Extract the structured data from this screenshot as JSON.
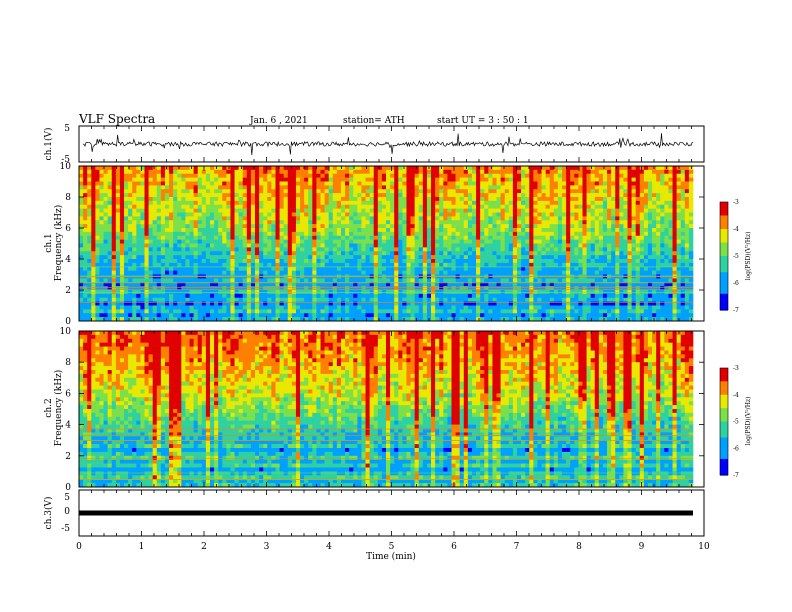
{
  "header": {
    "title": "VLF Spectra",
    "date": "Jan. 6 , 2021",
    "station": "station= ATH",
    "start": "start UT = 3 : 50 : 1"
  },
  "chart_data": [
    {
      "type": "line",
      "ylabel": "ch.1(V)",
      "ylim": [
        -5,
        5
      ],
      "y_ticks": [
        "5",
        "-5"
      ],
      "xlim": [
        0,
        10
      ],
      "description_level": 0.0
    },
    {
      "type": "heatmap",
      "ylabel_line1": "ch.1",
      "ylabel_line2": "Frequency (kHz)",
      "xlim": [
        0,
        10
      ],
      "ylim": [
        0,
        10
      ],
      "y_ticks": [
        "0",
        "2",
        "4",
        "6",
        "8",
        "10"
      ],
      "colorbar": {
        "label": "log(PSD)(V²/Hz)",
        "range": [
          -7,
          -3
        ],
        "ticks": [
          "-3",
          "-4",
          "-5",
          "-6",
          "-7"
        ]
      }
    },
    {
      "type": "heatmap",
      "ylabel_line1": "ch.2",
      "ylabel_line2": "Frequency (kHz)",
      "xlim": [
        0,
        10
      ],
      "ylim": [
        0,
        10
      ],
      "y_ticks": [
        "0",
        "2",
        "4",
        "6",
        "8",
        "10"
      ],
      "colorbar": {
        "label": "log(PSD)(V²/Hz)",
        "range": [
          -7,
          -3
        ],
        "ticks": [
          "-3",
          "-4",
          "-5",
          "-6",
          "-7"
        ]
      }
    },
    {
      "type": "line",
      "ylabel": "ch.3(V)",
      "ylim": [
        -5,
        5
      ],
      "y_ticks": [
        "5",
        "0",
        "-5"
      ],
      "xlim": [
        0,
        10
      ],
      "x_ticks": [
        "0",
        "1",
        "2",
        "3",
        "4",
        "5",
        "6",
        "7",
        "8",
        "9",
        "10"
      ],
      "xlabel": "Time (min)",
      "level": 0.0
    }
  ],
  "colors": {
    "low": "#00008f",
    "mid": "#2fd17a",
    "high": "#ff2b00"
  }
}
